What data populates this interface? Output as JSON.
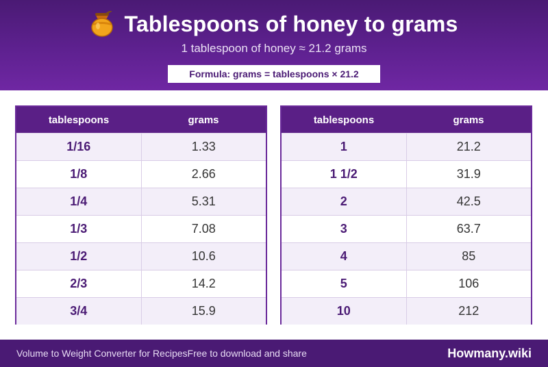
{
  "header": {
    "title": "Tablespoons of honey to grams",
    "subtitle": "1 tablespoon of honey ≈ 21.2 grams",
    "formula": "Formula: grams = tablespoons × 21.2",
    "icon": "honey-pot-icon",
    "background_color": "#5a1f86"
  },
  "tables": [
    {
      "headers": [
        "tablespoons",
        "grams"
      ],
      "rows": [
        [
          "1/16",
          "1.33"
        ],
        [
          "1/8",
          "2.66"
        ],
        [
          "1/4",
          "5.31"
        ],
        [
          "1/3",
          "7.08"
        ],
        [
          "1/2",
          "10.6"
        ],
        [
          "2/3",
          "14.2"
        ],
        [
          "3/4",
          "15.9"
        ]
      ]
    },
    {
      "headers": [
        "tablespoons",
        "grams"
      ],
      "rows": [
        [
          "1",
          "21.2"
        ],
        [
          "1 1/2",
          "31.9"
        ],
        [
          "2",
          "42.5"
        ],
        [
          "3",
          "63.7"
        ],
        [
          "4",
          "85"
        ],
        [
          "5",
          "106"
        ],
        [
          "10",
          "212"
        ]
      ]
    }
  ],
  "footer": {
    "left_text": "Volume to Weight Converter for RecipesFree to download and share",
    "brand": "Howmany.wiki"
  }
}
